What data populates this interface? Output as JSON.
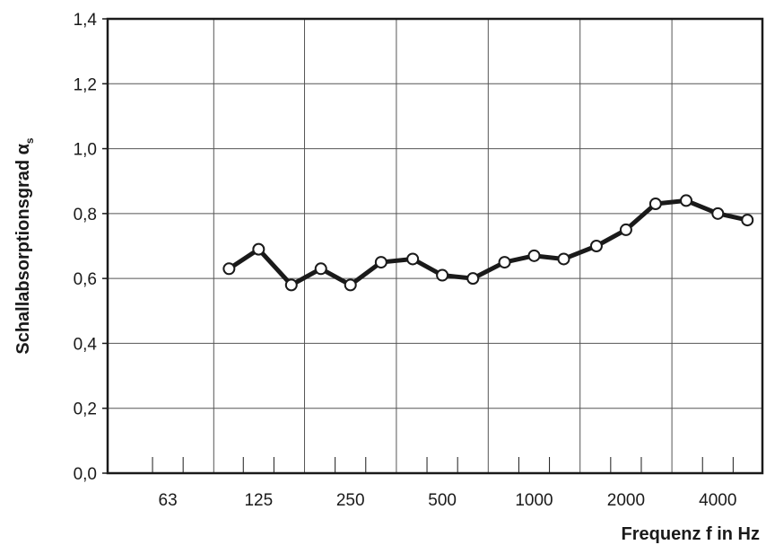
{
  "chart_data": {
    "type": "line",
    "xlabel": "Frequenz f in Hz",
    "ylabel_main": "Schallabsorptionsgrad α",
    "ylabel_sub": "s",
    "x_scale": "log",
    "x_tick_labels": [
      "63",
      "125",
      "250",
      "500",
      "1000",
      "2000",
      "4000"
    ],
    "x_ticks": [
      63,
      125,
      250,
      500,
      1000,
      2000,
      4000
    ],
    "y_tick_labels": [
      "0,0",
      "0,2",
      "0,4",
      "0,6",
      "0,8",
      "1,0",
      "1,2",
      "1,4"
    ],
    "ylim": [
      0,
      1.4
    ],
    "grid": true,
    "series": [
      {
        "x": [
          100,
          125,
          160,
          200,
          250,
          315,
          400,
          500,
          630,
          800,
          1000,
          1250,
          1600,
          2000,
          2500,
          3150,
          4000,
          5000
        ],
        "values": [
          0.63,
          0.69,
          0.58,
          0.63,
          0.58,
          0.65,
          0.66,
          0.61,
          0.6,
          0.65,
          0.67,
          0.66,
          0.7,
          0.75,
          0.83,
          0.84,
          0.8,
          0.78
        ]
      }
    ]
  }
}
